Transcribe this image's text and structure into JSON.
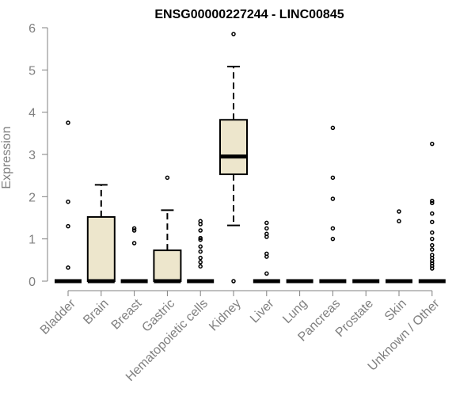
{
  "chart_data": {
    "type": "box",
    "title": "ENSG00000227244 - LINC00845",
    "xlabel": "",
    "ylabel": "Expression",
    "ylim": [
      0,
      6
    ],
    "yticks": [
      0,
      1,
      2,
      3,
      4,
      5,
      6
    ],
    "box_fill": "#ede6cc",
    "box_stroke": "#000000",
    "axis_color": "#808080",
    "categories": [
      "Bladder",
      "Brain",
      "Breast",
      "Gastric",
      "Hematopoietic cells",
      "Kidney",
      "Liver",
      "Lung",
      "Pancreas",
      "Prostate",
      "Skin",
      "Unknown / Other"
    ],
    "boxes": [
      {
        "q1": 0,
        "median": 0,
        "q3": 0,
        "whisker_low": 0,
        "whisker_high": 0,
        "outliers": [
          3.75,
          1.88,
          1.3,
          0.32
        ]
      },
      {
        "q1": 0,
        "median": 0,
        "q3": 1.52,
        "whisker_low": 0,
        "whisker_high": 2.28,
        "outliers": []
      },
      {
        "q1": 0,
        "median": 0,
        "q3": 0,
        "whisker_low": 0,
        "whisker_high": 0,
        "outliers": [
          1.25,
          1.2,
          0.9
        ]
      },
      {
        "q1": 0,
        "median": 0,
        "q3": 0.73,
        "whisker_low": 0,
        "whisker_high": 1.68,
        "outliers": [
          2.45
        ]
      },
      {
        "q1": 0,
        "median": 0,
        "q3": 0,
        "whisker_low": 0,
        "whisker_high": 0,
        "outliers": [
          1.42,
          1.35,
          1.2,
          1.02,
          0.98,
          0.82,
          0.7,
          0.55,
          0.45,
          0.35
        ]
      },
      {
        "q1": 2.53,
        "median": 2.95,
        "q3": 3.82,
        "whisker_low": 1.32,
        "whisker_high": 5.08,
        "outliers": [
          5.85,
          0
        ]
      },
      {
        "q1": 0,
        "median": 0,
        "q3": 0,
        "whisker_low": 0,
        "whisker_high": 0,
        "outliers": [
          1.38,
          1.25,
          1.12,
          1.05,
          0.65,
          0.58,
          0.18
        ]
      },
      {
        "q1": 0,
        "median": 0,
        "q3": 0,
        "whisker_low": 0,
        "whisker_high": 0,
        "outliers": []
      },
      {
        "q1": 0,
        "median": 0,
        "q3": 0,
        "whisker_low": 0,
        "whisker_high": 0,
        "outliers": [
          3.63,
          2.45,
          1.95,
          1.25,
          1.0
        ]
      },
      {
        "q1": 0,
        "median": 0,
        "q3": 0,
        "whisker_low": 0,
        "whisker_high": 0,
        "outliers": []
      },
      {
        "q1": 0,
        "median": 0,
        "q3": 0,
        "whisker_low": 0,
        "whisker_high": 0,
        "outliers": [
          1.65,
          1.42
        ]
      },
      {
        "q1": 0,
        "median": 0,
        "q3": 0,
        "whisker_low": 0,
        "whisker_high": 0,
        "outliers": [
          3.25,
          1.9,
          1.85,
          1.6,
          1.4,
          1.15,
          1.0,
          0.85,
          0.75,
          0.62,
          0.55,
          0.48,
          0.42,
          0.36,
          0.3
        ]
      }
    ]
  }
}
